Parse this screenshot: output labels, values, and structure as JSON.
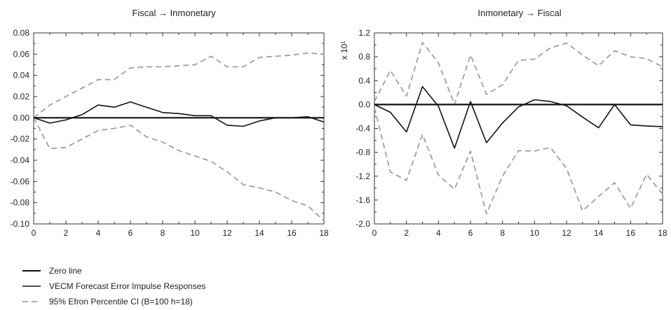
{
  "chart_data": [
    {
      "type": "line",
      "title": "Fiscal → Inmonetary",
      "ylabel_prefix": "",
      "xlim": [
        0,
        18
      ],
      "ylim": [
        -0.1,
        0.08
      ],
      "xticks": [
        "0",
        "2",
        "4",
        "6",
        "8",
        "10",
        "12",
        "14",
        "16",
        "18"
      ],
      "yticks": [
        "0.08",
        "0.06",
        "0.04",
        "0.02",
        "0.00",
        "-0.02",
        "-0.04",
        "-0.06",
        "-0.08",
        "-0.10"
      ],
      "x": [
        0,
        1,
        2,
        3,
        4,
        5,
        6,
        7,
        8,
        9,
        10,
        11,
        12,
        13,
        14,
        15,
        16,
        17,
        18
      ],
      "series": [
        {
          "name": "Zero line",
          "style": "zero",
          "values": [
            0,
            0,
            0,
            0,
            0,
            0,
            0,
            0,
            0,
            0,
            0,
            0,
            0,
            0,
            0,
            0,
            0,
            0,
            0
          ]
        },
        {
          "name": "VECM Forecast Error Impulse Responses",
          "style": "irf",
          "values": [
            0.0,
            -0.005,
            -0.002,
            0.003,
            0.012,
            0.01,
            0.015,
            0.01,
            0.005,
            0.004,
            0.002,
            0.002,
            -0.007,
            -0.008,
            -0.003,
            0.0,
            0.0,
            0.001,
            -0.004
          ]
        },
        {
          "name": "95% Efron Percentile CI (B=100 h=18)",
          "style": "ci",
          "values": [
            0.0,
            0.012,
            0.02,
            0.028,
            0.036,
            0.036,
            0.047,
            0.048,
            0.048,
            0.049,
            0.05,
            0.058,
            0.048,
            0.048,
            0.057,
            0.058,
            0.059,
            0.061,
            0.06
          ]
        },
        {
          "name": "95% Efron Percentile CI (B=100 h=18)",
          "style": "ci",
          "values": [
            0.0,
            -0.029,
            -0.028,
            -0.02,
            -0.012,
            -0.01,
            -0.007,
            -0.018,
            -0.023,
            -0.031,
            -0.036,
            -0.041,
            -0.051,
            -0.063,
            -0.066,
            -0.07,
            -0.078,
            -0.083,
            -0.097
          ]
        }
      ]
    },
    {
      "type": "line",
      "title": "Inmonetary → Fiscal",
      "ylabel_prefix": "x 10¹",
      "xlim": [
        0,
        18
      ],
      "ylim": [
        -2.0,
        1.2
      ],
      "xticks": [
        "0",
        "2",
        "4",
        "6",
        "8",
        "10",
        "12",
        "14",
        "16",
        "18"
      ],
      "yticks": [
        "1.2",
        "0.8",
        "0.4",
        "0.0",
        "-0.4",
        "-0.8",
        "-1.2",
        "-1.6",
        "-2.0"
      ],
      "x": [
        0,
        1,
        2,
        3,
        4,
        5,
        6,
        7,
        8,
        9,
        10,
        11,
        12,
        13,
        14,
        15,
        16,
        17,
        18
      ],
      "series": [
        {
          "name": "Zero line",
          "style": "zero",
          "values": [
            0,
            0,
            0,
            0,
            0,
            0,
            0,
            0,
            0,
            0,
            0,
            0,
            0,
            0,
            0,
            0,
            0,
            0,
            0
          ]
        },
        {
          "name": "VECM Forecast Error Impulse Responses",
          "style": "irf",
          "values": [
            0.0,
            -0.13,
            -0.46,
            0.3,
            -0.03,
            -0.73,
            0.05,
            -0.64,
            -0.31,
            -0.04,
            0.08,
            0.05,
            -0.02,
            -0.21,
            -0.39,
            0.0,
            -0.34,
            -0.36,
            -0.37
          ]
        },
        {
          "name": "95% Efron Percentile CI (B=100 h=18)",
          "style": "ci",
          "values": [
            0.05,
            0.57,
            0.14,
            1.04,
            0.7,
            0.0,
            0.83,
            0.17,
            0.33,
            0.74,
            0.76,
            0.95,
            1.03,
            0.83,
            0.65,
            0.9,
            0.8,
            0.77,
            0.63
          ]
        },
        {
          "name": "95% Efron Percentile CI (B=100 h=18)",
          "style": "ci",
          "values": [
            -0.05,
            -1.13,
            -1.27,
            -0.5,
            -1.18,
            -1.42,
            -0.78,
            -1.83,
            -1.2,
            -0.77,
            -0.78,
            -0.72,
            -1.07,
            -1.78,
            -1.54,
            -1.31,
            -1.74,
            -1.17,
            -1.5
          ]
        }
      ]
    }
  ],
  "legend": [
    {
      "label": "Zero line",
      "style": "zero"
    },
    {
      "label": "VECM Forecast Error Impulse Responses",
      "style": "irf"
    },
    {
      "label": "95% Efron Percentile CI (B=100 h=18)",
      "style": "ci"
    }
  ],
  "colors": {
    "line": "#111111",
    "ci": "#a0a0a0"
  }
}
